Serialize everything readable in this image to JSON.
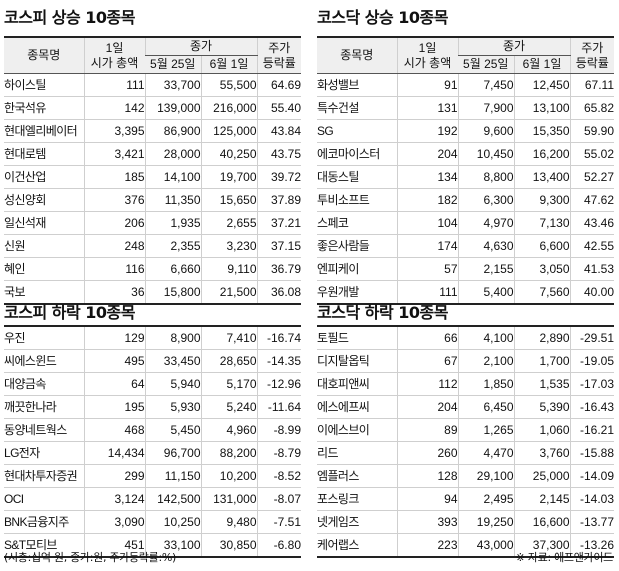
{
  "headers": {
    "name": "종목명",
    "market_cap_line1": "1일",
    "market_cap_line2": "시가 총액",
    "close": "종가",
    "date1": "5월 25일",
    "date2": "6월 1일",
    "change_line1": "주가",
    "change_line2": "등락률"
  },
  "tables": {
    "kospi_up": {
      "title": "코스피 상승 10종목",
      "rows": [
        {
          "name": "하이스틸",
          "cap": "111",
          "p1": "33,700",
          "p2": "55,500",
          "chg": "64.69"
        },
        {
          "name": "한국석유",
          "cap": "142",
          "p1": "139,000",
          "p2": "216,000",
          "chg": "55.40"
        },
        {
          "name": "현대엘리베이터",
          "cap": "3,395",
          "p1": "86,900",
          "p2": "125,000",
          "chg": "43.84"
        },
        {
          "name": "현대로템",
          "cap": "3,421",
          "p1": "28,000",
          "p2": "40,250",
          "chg": "43.75"
        },
        {
          "name": "이건산업",
          "cap": "185",
          "p1": "14,100",
          "p2": "19,700",
          "chg": "39.72"
        },
        {
          "name": "성신양회",
          "cap": "376",
          "p1": "11,350",
          "p2": "15,650",
          "chg": "37.89"
        },
        {
          "name": "일신석재",
          "cap": "206",
          "p1": "1,935",
          "p2": "2,655",
          "chg": "37.21"
        },
        {
          "name": "신원",
          "cap": "248",
          "p1": "2,355",
          "p2": "3,230",
          "chg": "37.15"
        },
        {
          "name": "혜인",
          "cap": "116",
          "p1": "6,660",
          "p2": "9,110",
          "chg": "36.79"
        },
        {
          "name": "국보",
          "cap": "36",
          "p1": "15,800",
          "p2": "21,500",
          "chg": "36.08"
        }
      ]
    },
    "kosdaq_up": {
      "title": "코스닥 상승 10종목",
      "rows": [
        {
          "name": "화성밸브",
          "cap": "91",
          "p1": "7,450",
          "p2": "12,450",
          "chg": "67.11"
        },
        {
          "name": "특수건설",
          "cap": "131",
          "p1": "7,900",
          "p2": "13,100",
          "chg": "65.82"
        },
        {
          "name": "SG",
          "cap": "192",
          "p1": "9,600",
          "p2": "15,350",
          "chg": "59.90"
        },
        {
          "name": "에코마이스터",
          "cap": "204",
          "p1": "10,450",
          "p2": "16,200",
          "chg": "55.02"
        },
        {
          "name": "대동스틸",
          "cap": "134",
          "p1": "8,800",
          "p2": "13,400",
          "chg": "52.27"
        },
        {
          "name": "투비소프트",
          "cap": "182",
          "p1": "6,300",
          "p2": "9,300",
          "chg": "47.62"
        },
        {
          "name": "스페코",
          "cap": "104",
          "p1": "4,970",
          "p2": "7,130",
          "chg": "43.46"
        },
        {
          "name": "좋은사람들",
          "cap": "174",
          "p1": "4,630",
          "p2": "6,600",
          "chg": "42.55"
        },
        {
          "name": "엔피케이",
          "cap": "57",
          "p1": "2,155",
          "p2": "3,050",
          "chg": "41.53"
        },
        {
          "name": "우원개발",
          "cap": "111",
          "p1": "5,400",
          "p2": "7,560",
          "chg": "40.00"
        }
      ]
    },
    "kospi_down": {
      "title": "코스피 하락 10종목",
      "rows": [
        {
          "name": "우진",
          "cap": "129",
          "p1": "8,900",
          "p2": "7,410",
          "chg": "-16.74"
        },
        {
          "name": "씨에스윈드",
          "cap": "495",
          "p1": "33,450",
          "p2": "28,650",
          "chg": "-14.35"
        },
        {
          "name": "대양금속",
          "cap": "64",
          "p1": "5,940",
          "p2": "5,170",
          "chg": "-12.96"
        },
        {
          "name": "깨끗한나라",
          "cap": "195",
          "p1": "5,930",
          "p2": "5,240",
          "chg": "-11.64"
        },
        {
          "name": "동양네트웍스",
          "cap": "468",
          "p1": "5,450",
          "p2": "4,960",
          "chg": "-8.99"
        },
        {
          "name": "LG전자",
          "cap": "14,434",
          "p1": "96,700",
          "p2": "88,200",
          "chg": "-8.79"
        },
        {
          "name": "현대차투자증권",
          "cap": "299",
          "p1": "11,150",
          "p2": "10,200",
          "chg": "-8.52"
        },
        {
          "name": "OCI",
          "cap": "3,124",
          "p1": "142,500",
          "p2": "131,000",
          "chg": "-8.07"
        },
        {
          "name": "BNK금융지주",
          "cap": "3,090",
          "p1": "10,250",
          "p2": "9,480",
          "chg": "-7.51"
        },
        {
          "name": "S&T모티브",
          "cap": "451",
          "p1": "33,100",
          "p2": "30,850",
          "chg": "-6.80"
        }
      ]
    },
    "kosdaq_down": {
      "title": "코스닥 하락 10종목",
      "rows": [
        {
          "name": "토필드",
          "cap": "66",
          "p1": "4,100",
          "p2": "2,890",
          "chg": "-29.51"
        },
        {
          "name": "디지탈옵틱",
          "cap": "67",
          "p1": "2,100",
          "p2": "1,700",
          "chg": "-19.05"
        },
        {
          "name": "대호피앤씨",
          "cap": "112",
          "p1": "1,850",
          "p2": "1,535",
          "chg": "-17.03"
        },
        {
          "name": "에스에프씨",
          "cap": "204",
          "p1": "6,450",
          "p2": "5,390",
          "chg": "-16.43"
        },
        {
          "name": "이에스브이",
          "cap": "89",
          "p1": "1,265",
          "p2": "1,060",
          "chg": "-16.21"
        },
        {
          "name": "리드",
          "cap": "260",
          "p1": "4,470",
          "p2": "3,760",
          "chg": "-15.88"
        },
        {
          "name": "엠플러스",
          "cap": "128",
          "p1": "29,100",
          "p2": "25,000",
          "chg": "-14.09"
        },
        {
          "name": "포스링크",
          "cap": "94",
          "p1": "2,495",
          "p2": "2,145",
          "chg": "-14.03"
        },
        {
          "name": "넷게임즈",
          "cap": "393",
          "p1": "19,250",
          "p2": "16,600",
          "chg": "-13.77"
        },
        {
          "name": "케어랩스",
          "cap": "223",
          "p1": "43,000",
          "p2": "37,300",
          "chg": "-13.26"
        }
      ]
    }
  },
  "footer": {
    "unit_note": "(시총:십억 원, 종가:원, 주가등락률:%)",
    "source": "※ 자료: 에프앤가이드"
  }
}
